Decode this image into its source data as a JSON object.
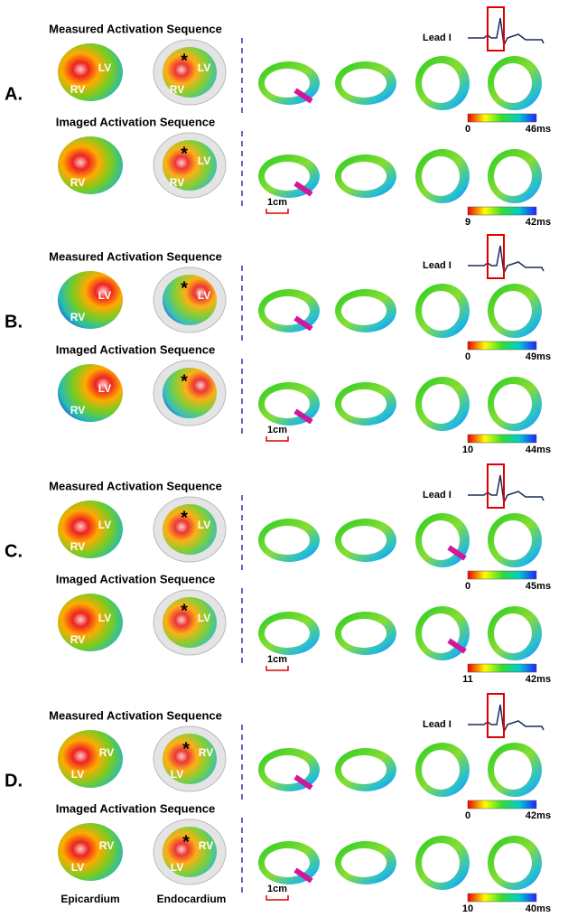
{
  "panels": [
    {
      "label": "A.",
      "lead": "Lead I",
      "rows": [
        {
          "title": "Measured Activation Sequence",
          "epicardium": [
            "LV",
            "RV"
          ],
          "endocardium": [
            "*",
            "LV",
            "RV"
          ],
          "colorbar": {
            "min": "0",
            "max": "46ms"
          }
        },
        {
          "title": "Imaged Activation Sequence",
          "epicardium": [
            "RV"
          ],
          "endocardium": [
            "*",
            "LV",
            "RV"
          ],
          "colorbar": {
            "min": "9",
            "max": "42ms"
          },
          "scale": "1cm"
        }
      ]
    },
    {
      "label": "B.",
      "lead": "Lead I",
      "rows": [
        {
          "title": "Measured Activation Sequence",
          "epicardium": [
            "LV",
            "RV"
          ],
          "endocardium": [
            "*",
            "LV"
          ],
          "colorbar": {
            "min": "0",
            "max": "49ms"
          }
        },
        {
          "title": "Imaged Activation Sequence",
          "epicardium": [
            "LV",
            "RV"
          ],
          "endocardium": [
            "*"
          ],
          "colorbar": {
            "min": "10",
            "max": "44ms"
          },
          "scale": "1cm"
        }
      ]
    },
    {
      "label": "C.",
      "lead": "Lead I",
      "rows": [
        {
          "title": "Measured Activation Sequence",
          "epicardium": [
            "RV",
            "LV"
          ],
          "endocardium": [
            "LV",
            "*"
          ],
          "colorbar": {
            "min": "0",
            "max": "45ms"
          }
        },
        {
          "title": "Imaged Activation Sequence",
          "epicardium": [
            "RV",
            "LV"
          ],
          "endocardium": [
            "LV",
            "*"
          ],
          "colorbar": {
            "min": "11",
            "max": "42ms"
          },
          "scale": "1cm"
        }
      ]
    },
    {
      "label": "D.",
      "lead": "Lead I",
      "rows": [
        {
          "title": "Measured Activation Sequence",
          "epicardium": [
            "RV",
            "LV"
          ],
          "endocardium": [
            "*",
            "RV",
            "LV"
          ],
          "colorbar": {
            "min": "0",
            "max": "42ms"
          }
        },
        {
          "title": "Imaged Activation Sequence",
          "epicardium": [
            "RV",
            "LV"
          ],
          "endocardium": [
            "*",
            "RV",
            "LV"
          ],
          "colorbar": {
            "min": "10",
            "max": "40ms"
          },
          "scale": "1cm"
        }
      ]
    }
  ],
  "footer": {
    "epicardium": "Epicardium",
    "endocardium": "Endocardium"
  }
}
